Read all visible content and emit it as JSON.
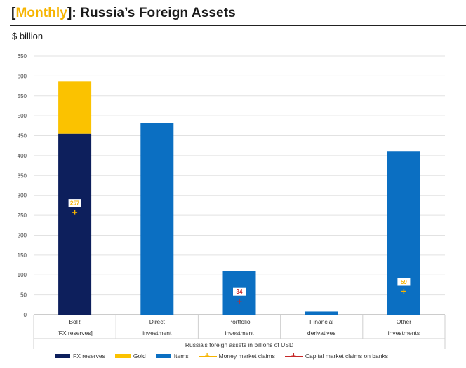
{
  "header": {
    "bracket_open": "[",
    "title_highlight": "Monthly",
    "bracket_close": "]",
    "title_rest": ": Russia’s Foreign Assets",
    "unit": "$ billion"
  },
  "colors": {
    "fx_reserves": "#0d1f5c",
    "gold": "#fbc200",
    "items": "#0b6fc2",
    "money_market": "#f6b400",
    "capital_market": "#c62828",
    "highlight": "#f6b400"
  },
  "chart_data": {
    "type": "bar",
    "stacked": true,
    "categories": [
      [
        "BoR",
        "[FX reserves]"
      ],
      [
        "Direct",
        "investment"
      ],
      [
        "Portfolio",
        "investment"
      ],
      [
        "Financial",
        "derivatives"
      ],
      [
        "Other",
        "investments"
      ]
    ],
    "series": [
      {
        "name": "FX reserves",
        "values": [
          455,
          0,
          0,
          0,
          0
        ]
      },
      {
        "name": "Gold",
        "values": [
          131,
          0,
          0,
          0,
          0
        ]
      },
      {
        "name": "Items",
        "values": [
          0,
          482,
          110,
          8,
          410
        ]
      }
    ],
    "markers": [
      {
        "name": "Money market claims",
        "category_index": 0,
        "value": 257,
        "label": "257"
      },
      {
        "name": "Capital market claims on banks",
        "category_index": 2,
        "value": 34,
        "label": "34"
      },
      {
        "name": "Money market claims",
        "category_index": 4,
        "value": 59,
        "label": "59"
      }
    ],
    "ylim": [
      0,
      650
    ],
    "yticks": [
      0,
      50,
      100,
      150,
      200,
      250,
      300,
      350,
      400,
      450,
      500,
      550,
      600,
      650
    ],
    "xlabel": "Russia's foreign assets in billions of USD",
    "grid": true,
    "legend": {
      "position": "bottom",
      "entries": [
        "FX reserves",
        "Gold",
        "Items",
        "Money market claims",
        "Capital market claims on banks"
      ]
    }
  }
}
